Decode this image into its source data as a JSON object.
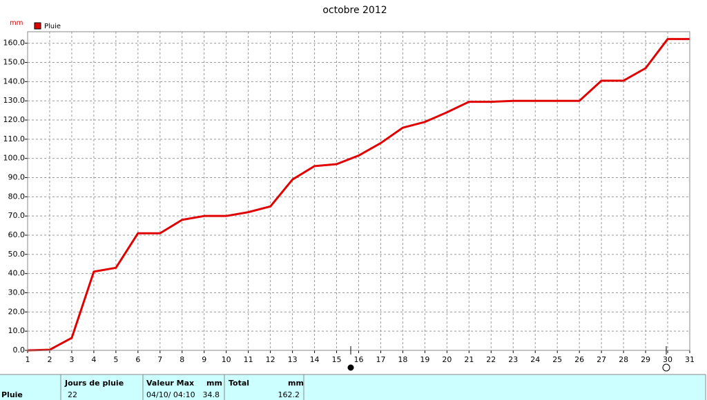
{
  "chart_data": {
    "type": "line",
    "title": "octobre 2012",
    "ylabel": "mm",
    "x": [
      1,
      2,
      3,
      4,
      5,
      6,
      7,
      8,
      9,
      10,
      11,
      12,
      13,
      14,
      15,
      16,
      17,
      18,
      19,
      20,
      21,
      22,
      23,
      24,
      25,
      26,
      27,
      28,
      29,
      30,
      31
    ],
    "series": [
      {
        "name": "Pluie",
        "color": "#e00000",
        "values": [
          0,
          0.3,
          6.5,
          41,
          43,
          61,
          61,
          68,
          70,
          70,
          72,
          75,
          89,
          96,
          97,
          101.5,
          108,
          116,
          119,
          124,
          129.5,
          129.5,
          130,
          130,
          130,
          130,
          140.5,
          140.5,
          147,
          162.2,
          162.2
        ]
      }
    ],
    "xlim": [
      1,
      31
    ],
    "xticks": [
      1,
      2,
      3,
      4,
      5,
      6,
      7,
      8,
      9,
      10,
      11,
      12,
      13,
      14,
      15,
      16,
      17,
      18,
      19,
      20,
      21,
      22,
      23,
      24,
      25,
      26,
      27,
      28,
      29,
      30,
      31
    ],
    "ylim": [
      0,
      166
    ],
    "yticks": [
      {
        "value": 0,
        "label": "0.0"
      },
      {
        "value": 10,
        "label": "10.0"
      },
      {
        "value": 20,
        "label": "20.0"
      },
      {
        "value": 30,
        "label": "30.0"
      },
      {
        "value": 40,
        "label": "40.0"
      },
      {
        "value": 50,
        "label": "50.0"
      },
      {
        "value": 60,
        "label": "60.0"
      },
      {
        "value": 70,
        "label": "70.0"
      },
      {
        "value": 80,
        "label": "80.0"
      },
      {
        "value": 90,
        "label": "90.0"
      },
      {
        "value": 100,
        "label": "100.0"
      },
      {
        "value": 110,
        "label": "110.0"
      },
      {
        "value": 120,
        "label": "120.0"
      },
      {
        "value": 130,
        "label": "130.0"
      },
      {
        "value": 140,
        "label": "140.0"
      },
      {
        "value": 150,
        "label": "150.0"
      },
      {
        "value": 160,
        "label": "160.0"
      }
    ],
    "grid": true
  },
  "table": {
    "header": [
      "Jours de pluie",
      "Valeur Max",
      "mm",
      "Total",
      "mm"
    ],
    "rows": [
      [
        "Pluie",
        "22",
        "04/10/ 04:10",
        "34.8",
        "162.2"
      ]
    ]
  }
}
